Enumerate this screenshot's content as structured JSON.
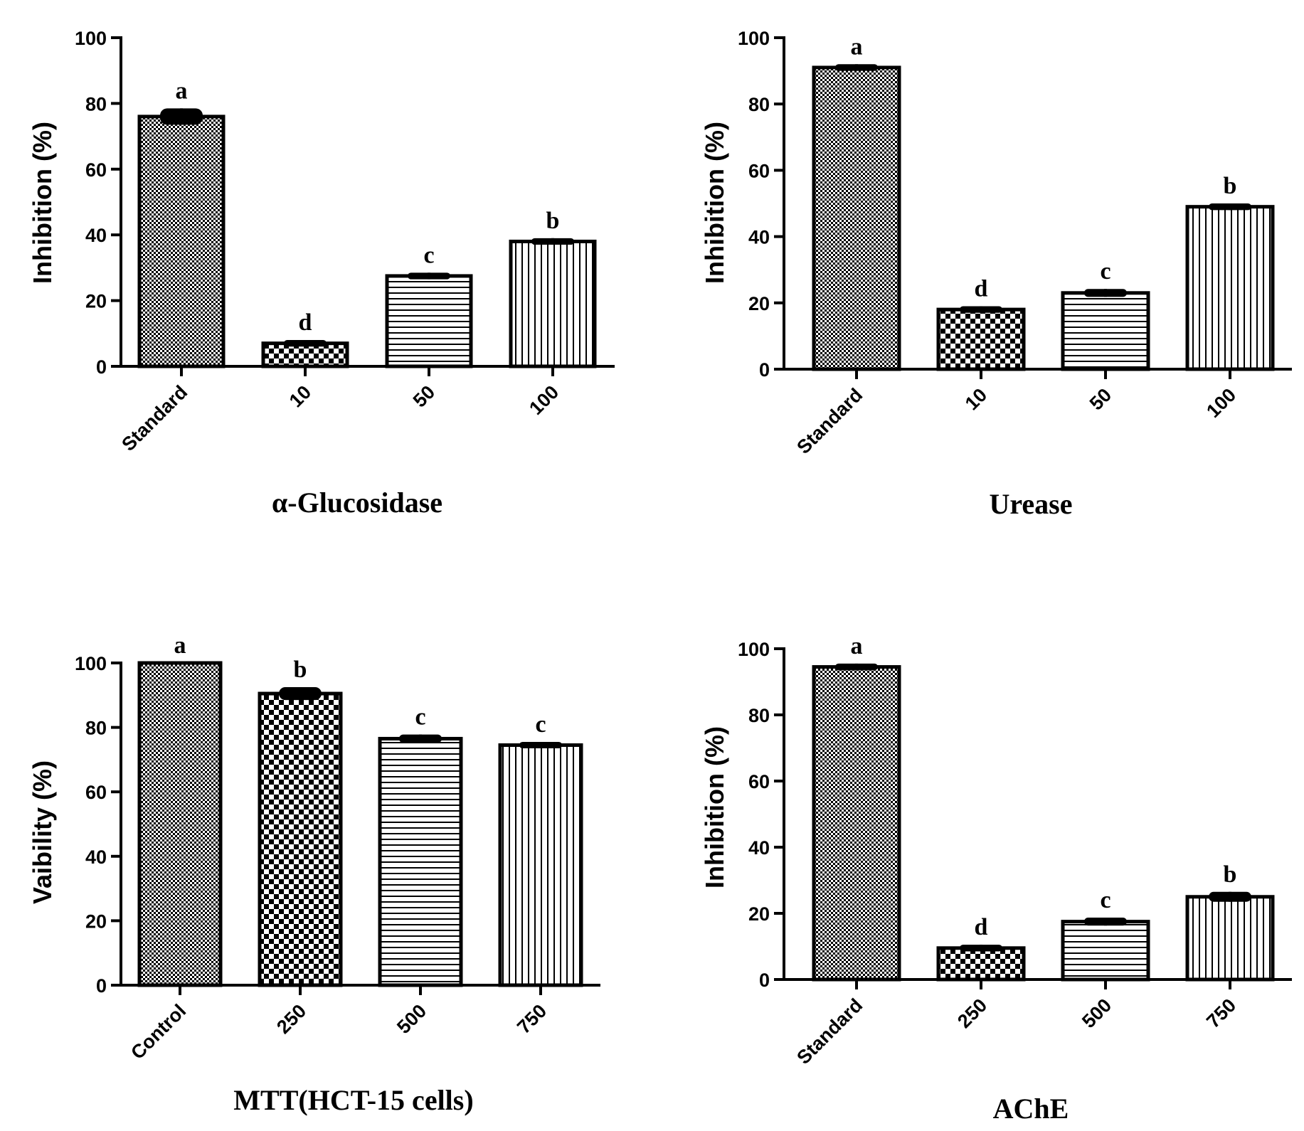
{
  "chart_data": [
    {
      "type": "bar",
      "title": "",
      "xlabel": "α-Glucosidase",
      "ylabel": "Inhibition (%)",
      "ylim": [
        0,
        100
      ],
      "yticks": [
        "0",
        "20",
        "40",
        "60",
        "80",
        "100"
      ],
      "categories": [
        "Standard",
        "10",
        "50",
        "100"
      ],
      "values": [
        76,
        7,
        27.5,
        38
      ],
      "errors": [
        2.5,
        1,
        1,
        1
      ],
      "letters": [
        "a",
        "d",
        "c",
        "b"
      ]
    },
    {
      "type": "bar",
      "title": "",
      "xlabel": "Urease",
      "ylabel": "Inhibition (%)",
      "ylim": [
        0,
        100
      ],
      "yticks": [
        "0",
        "20",
        "40",
        "60",
        "80",
        "100"
      ],
      "categories": [
        "Standard",
        "10",
        "50",
        "100"
      ],
      "values": [
        91,
        18,
        23,
        49
      ],
      "errors": [
        1,
        1,
        1.2,
        1
      ],
      "letters": [
        "a",
        "d",
        "c",
        "b"
      ]
    },
    {
      "type": "bar",
      "title": "",
      "xlabel": "MTT(HCT-15 cells)",
      "ylabel": "Vaibility (%)",
      "ylim": [
        0,
        100
      ],
      "yticks": [
        "0",
        "20",
        "40",
        "60",
        "80",
        "100"
      ],
      "categories": [
        "Control",
        "250",
        "500",
        "750"
      ],
      "values": [
        100,
        90.5,
        76.5,
        74.5
      ],
      "errors": [
        0,
        2,
        1.3,
        1
      ],
      "letters": [
        "a",
        "b",
        "c",
        "c"
      ]
    },
    {
      "type": "bar",
      "title": "",
      "xlabel": "AChE",
      "ylabel": "Inhibition (%)",
      "ylim": [
        0,
        100
      ],
      "yticks": [
        "0",
        "20",
        "40",
        "60",
        "80",
        "100"
      ],
      "categories": [
        "Standard",
        "250",
        "500",
        "750"
      ],
      "values": [
        94.5,
        9.5,
        17.5,
        25
      ],
      "errors": [
        1,
        1,
        1.2,
        1.5
      ],
      "letters": [
        "a",
        "d",
        "c",
        "b"
      ]
    }
  ]
}
